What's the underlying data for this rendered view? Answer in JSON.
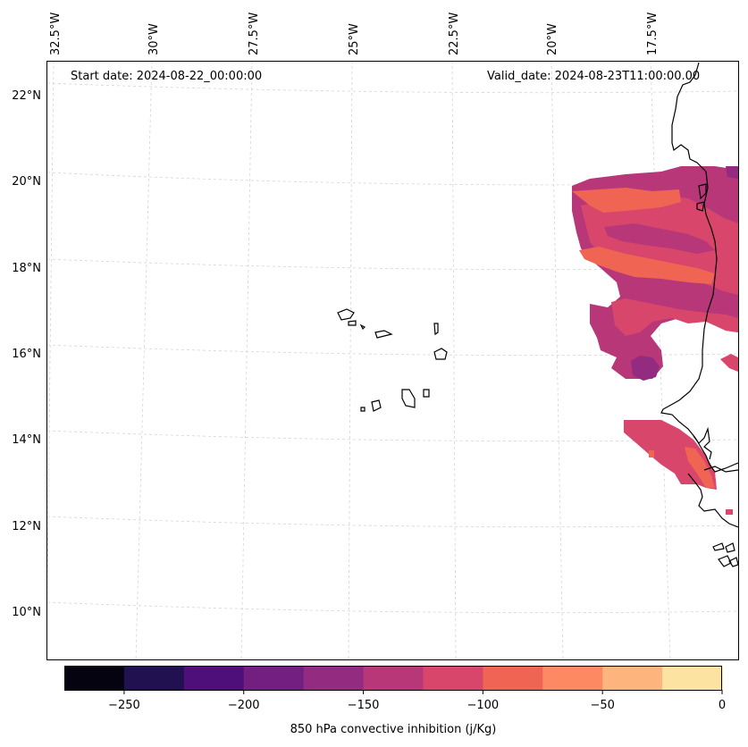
{
  "map": {
    "start_date": "Start date: 2024-08-22_00:00:00",
    "valid_date": "Valid_date: 2024-08-23T11:00:00.00",
    "longitude_labels": [
      "32.5°W",
      "30°W",
      "27.5°W",
      "25°W",
      "22.5°W",
      "20°W",
      "17.5°W"
    ],
    "latitude_labels": [
      "22°N",
      "20°N",
      "18°N",
      "16°N",
      "14°N",
      "12°N",
      "10°N"
    ],
    "variable": "850 hPa convective inhibition",
    "units": "j/Kg"
  },
  "colorbar": {
    "title": "850 hPa convective inhibition (j/Kg)",
    "tick_labels": [
      "−250",
      "−200",
      "−150",
      "−100",
      "−50",
      "0"
    ],
    "tick_values": [
      -250,
      -200,
      -150,
      -100,
      -50,
      0
    ],
    "range": [
      -275,
      0
    ],
    "level_bounds": [
      -275,
      -250,
      -225,
      -200,
      -175,
      -150,
      -125,
      -100,
      -75,
      -50,
      -25,
      0
    ],
    "colors": [
      "#04030f",
      "#221150",
      "#4f0f7a",
      "#721f81",
      "#932b80",
      "#b73779",
      "#d8466c",
      "#ef6453",
      "#fc8961",
      "#fdb47d",
      "#fde3a1"
    ]
  },
  "colors": {
    "coastline": "#000000",
    "gridline": "#d0d0d0"
  }
}
